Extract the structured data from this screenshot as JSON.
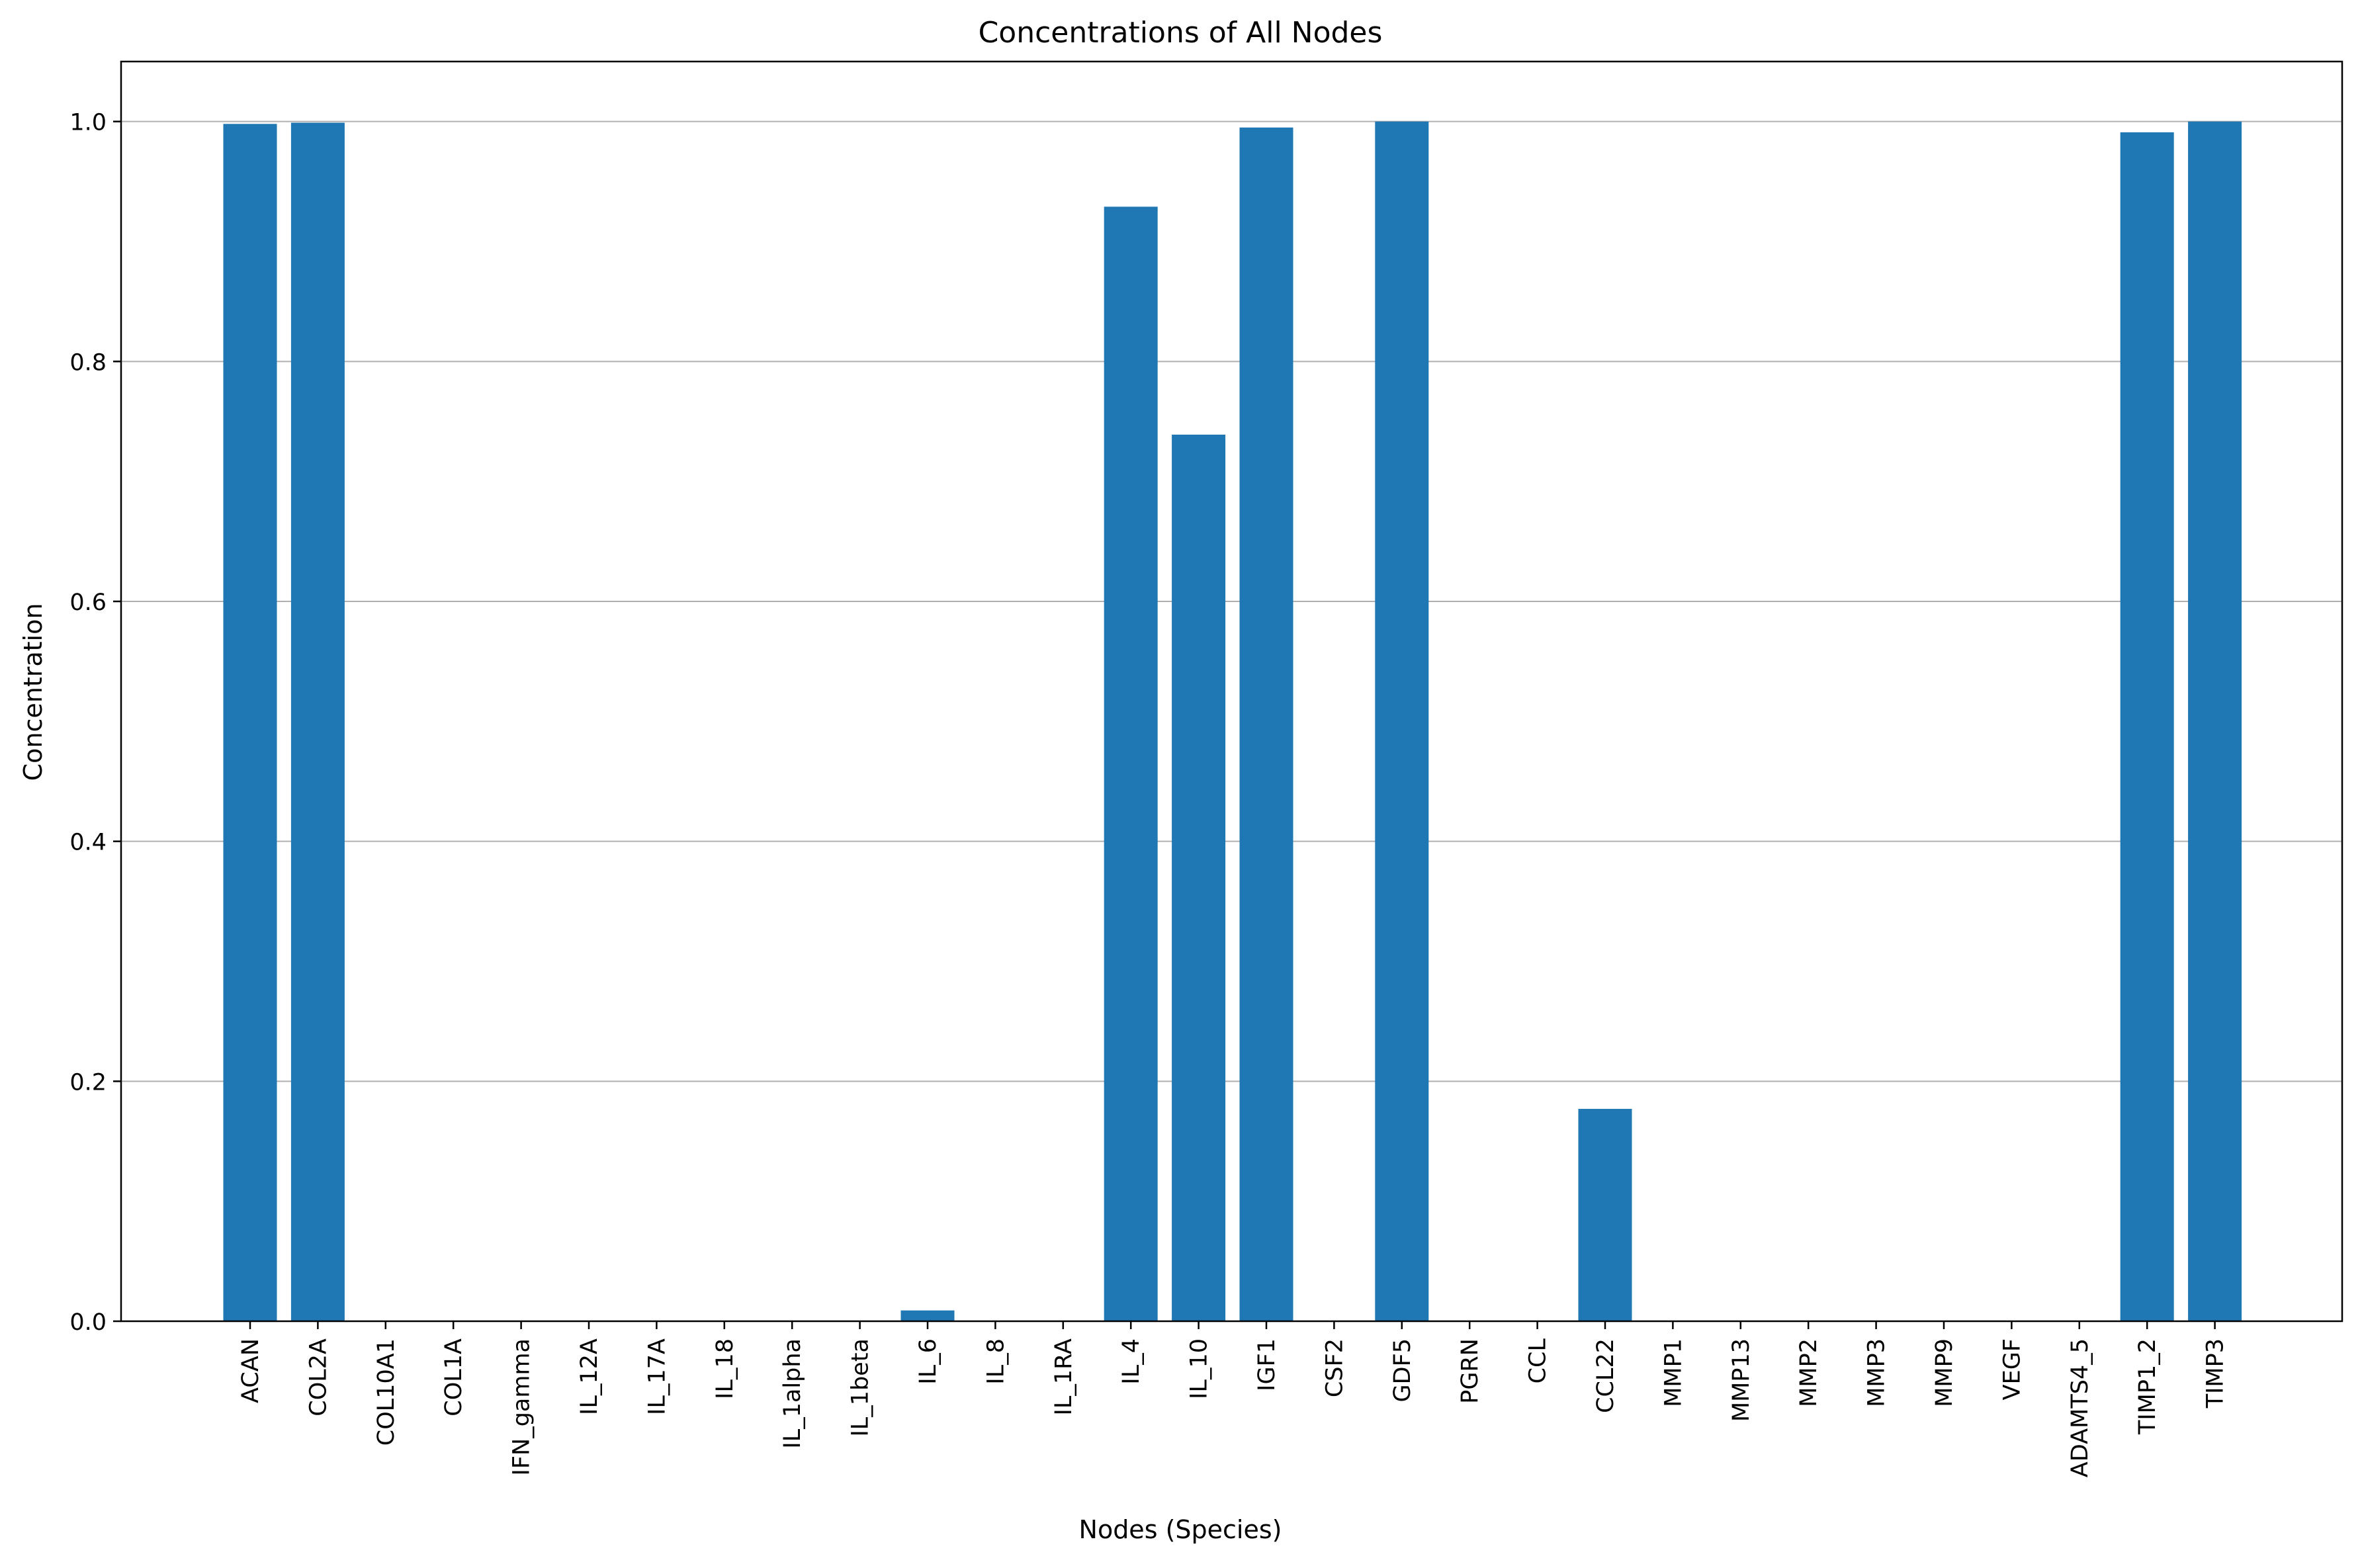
{
  "chart_data": {
    "type": "bar",
    "title": "Concentrations of All Nodes",
    "xlabel": "Nodes (Species)",
    "ylabel": "Concentration",
    "ylim": [
      0,
      1.05
    ],
    "yticks": [
      0.0,
      0.2,
      0.4,
      0.6,
      0.8,
      1.0
    ],
    "ytick_labels": [
      "0.0",
      "0.2",
      "0.4",
      "0.6",
      "0.8",
      "1.0"
    ],
    "grid": "y-major",
    "bar_color": "#1f77b4",
    "categories": [
      "ACAN",
      "COL2A",
      "COL10A1",
      "COL1A",
      "IFN_gamma",
      "IL_12A",
      "IL_17A",
      "IL_18",
      "IL_1alpha",
      "IL_1beta",
      "IL_6",
      "IL_8",
      "IL_1RA",
      "IL_4",
      "IL_10",
      "IGF1",
      "CSF2",
      "GDF5",
      "PGRN",
      "CCL",
      "CCL22",
      "MMP1",
      "MMP13",
      "MMP2",
      "MMP3",
      "MMP9",
      "VEGF",
      "ADAMTS4_5",
      "TIMP1_2",
      "TIMP3"
    ],
    "values": [
      0.998,
      0.999,
      0.0,
      0.0,
      0.0,
      0.0,
      0.0,
      0.0,
      0.0,
      0.0,
      0.009,
      0.0,
      0.0,
      0.929,
      0.739,
      0.995,
      0.0,
      1.0,
      0.0,
      0.0,
      0.177,
      0.0,
      0.0,
      0.0,
      0.0,
      0.0,
      0.0,
      0.0,
      0.991,
      1.0
    ]
  }
}
